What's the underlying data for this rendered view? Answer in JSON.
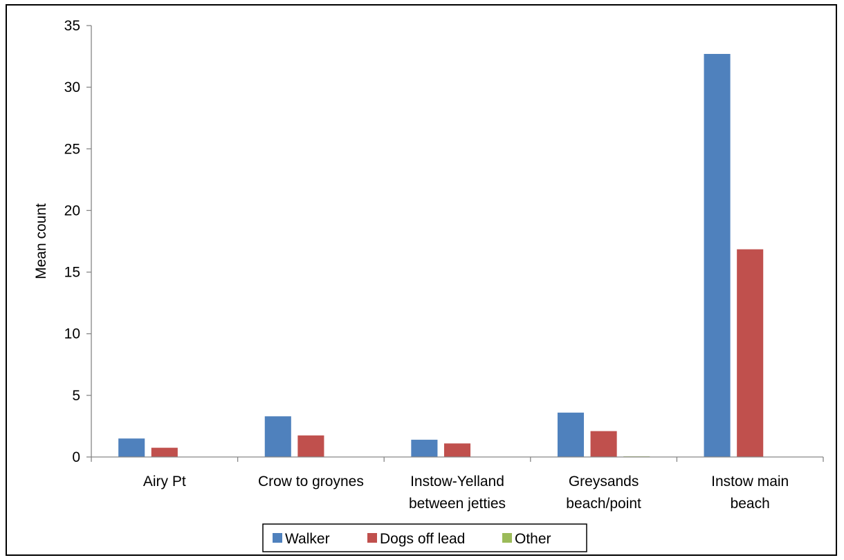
{
  "chart_data": {
    "type": "bar",
    "title": "",
    "xlabel": "",
    "ylabel": "Mean count",
    "ylim": [
      0,
      35
    ],
    "yticks": [
      0,
      5,
      10,
      15,
      20,
      25,
      30,
      35
    ],
    "categories": [
      [
        "Airy Pt"
      ],
      [
        "Crow to groynes"
      ],
      [
        "Instow-Yelland",
        "between jetties"
      ],
      [
        "Greysands",
        "beach/point"
      ],
      [
        "Instow main",
        "beach"
      ]
    ],
    "series": [
      {
        "name": "Walker",
        "color": "#4F81BD",
        "values": [
          1.5,
          3.3,
          1.4,
          3.6,
          32.7
        ]
      },
      {
        "name": "Dogs off lead",
        "color": "#C0504D",
        "values": [
          0.75,
          1.75,
          1.1,
          2.1,
          16.85
        ]
      },
      {
        "name": "Other",
        "color": "#9BBB59",
        "values": [
          0,
          0,
          0,
          0.05,
          0
        ]
      }
    ],
    "grid": false,
    "legend_position": "bottom"
  }
}
